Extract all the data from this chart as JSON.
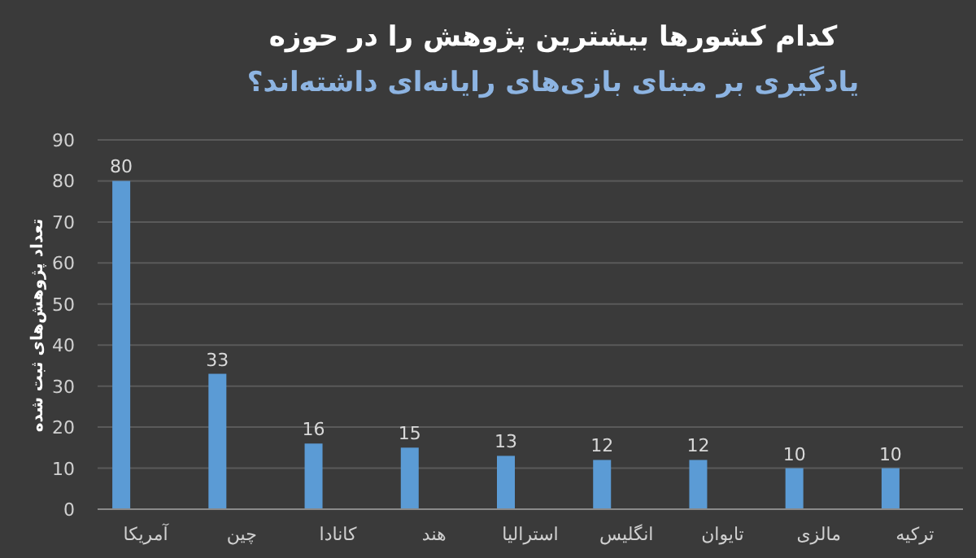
{
  "chart_data": {
    "type": "bar",
    "title": "کدام کشورها بیشترین پژوهش را در حوزه",
    "subtitle": "یادگیری بر مبنای بازی‌های رایانه‌ای داشته‌اند؟",
    "ylabel": "تعداد پژوهش‌های ثبت شده",
    "categories": [
      "آمریکا",
      "چین",
      "کانادا",
      "هند",
      "استرالیا",
      "انگلیس",
      "تایوان",
      "مالزی",
      "ترکیه"
    ],
    "values": [
      80,
      33,
      16,
      15,
      13,
      12,
      12,
      10,
      10
    ],
    "color": "#5b9bd5",
    "ylim": [
      0,
      90
    ],
    "yticks": [
      0,
      10,
      20,
      30,
      40,
      50,
      60,
      70,
      80,
      90
    ],
    "grid": "y",
    "data_labels": true
  }
}
